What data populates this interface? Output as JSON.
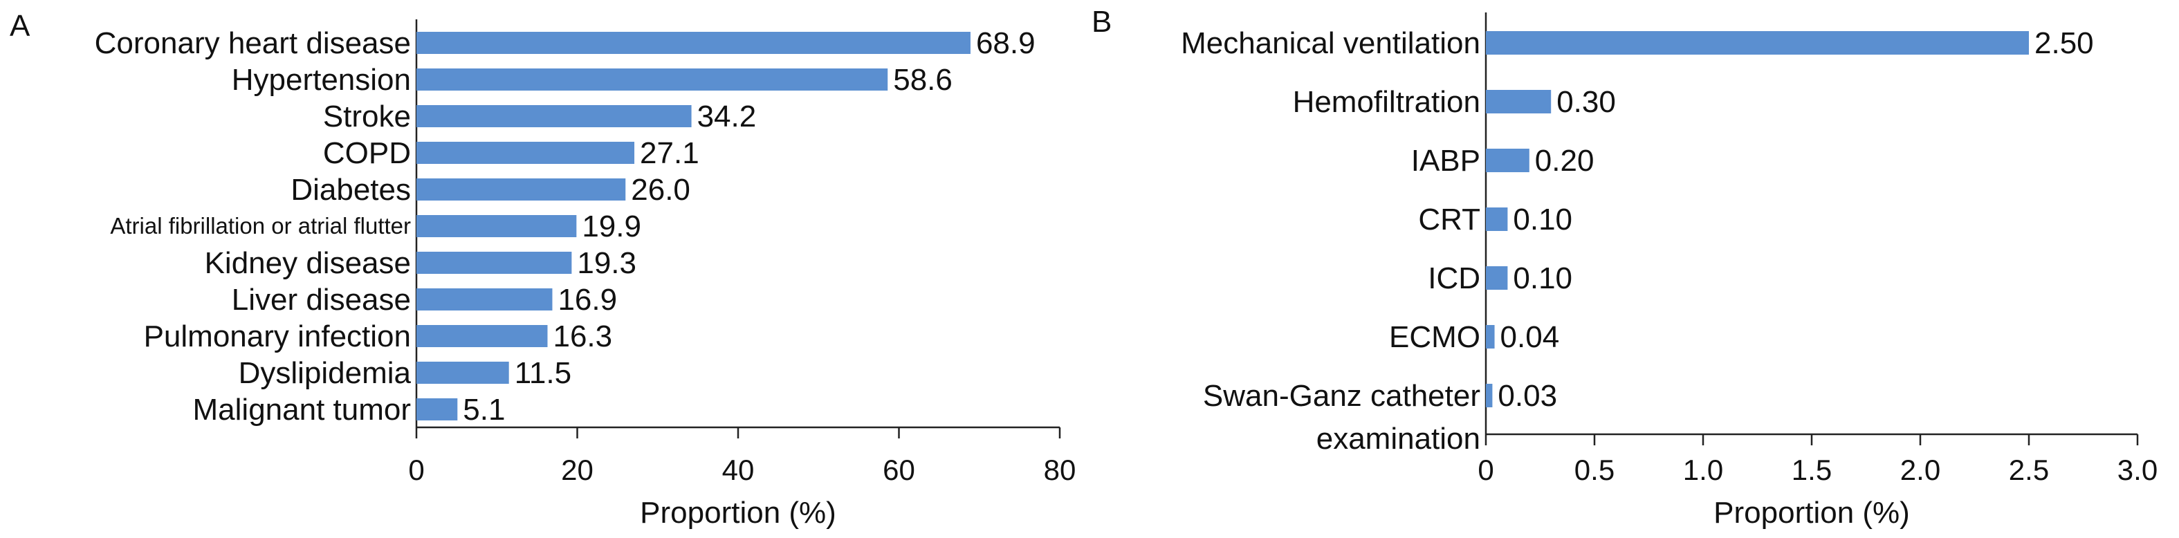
{
  "chart_data": [
    {
      "type": "bar",
      "orientation": "horizontal",
      "panel_label": "A",
      "categories": [
        "Coronary heart disease",
        "Hypertension",
        "Stroke",
        "COPD",
        "Diabetes",
        "Atrial fibrillation or atrial flutter",
        "Kidney disease",
        "Liver disease",
        "Pulmonary infection",
        "Dyslipidemia",
        "Malignant tumor"
      ],
      "values": [
        68.9,
        58.6,
        34.2,
        27.1,
        26.0,
        19.9,
        19.3,
        16.9,
        16.3,
        11.5,
        5.1
      ],
      "value_labels": [
        "68.9",
        "58.6",
        "34.2",
        "27.1",
        "26.0",
        "19.9",
        "19.3",
        "16.9",
        "16.3",
        "11.5",
        "5.1"
      ],
      "xlabel": "Proportion (%)",
      "xlim": [
        0,
        80
      ],
      "xticks": [
        "0",
        "20",
        "40",
        "60",
        "80"
      ],
      "grid": false,
      "bar_color": "#5b8fd0"
    },
    {
      "type": "bar",
      "orientation": "horizontal",
      "panel_label": "B",
      "categories": [
        "Mechanical ventilation",
        "Hemofiltration",
        "IABP",
        "CRT",
        "ICD",
        "ECMO",
        "Swan-Ganz catheter examination"
      ],
      "category_lines": [
        [
          "Mechanical ventilation"
        ],
        [
          "Hemofiltration"
        ],
        [
          "IABP"
        ],
        [
          "CRT"
        ],
        [
          "ICD"
        ],
        [
          "ECMO"
        ],
        [
          "Swan-Ganz catheter",
          "examination"
        ]
      ],
      "values": [
        2.5,
        0.3,
        0.2,
        0.1,
        0.1,
        0.04,
        0.03
      ],
      "value_labels": [
        "2.50",
        "0.30",
        "0.20",
        "0.10",
        "0.10",
        "0.04",
        "0.03"
      ],
      "xlabel": "Proportion (%)",
      "xlim": [
        0,
        3.0
      ],
      "xticks": [
        "0",
        "0.5",
        "1.0",
        "1.5",
        "2.0",
        "2.5",
        "3.0"
      ],
      "grid": false,
      "bar_color": "#5b8fd0"
    }
  ]
}
